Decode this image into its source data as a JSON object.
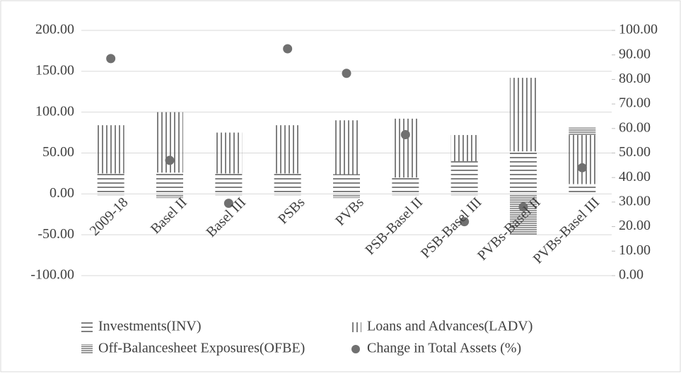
{
  "chart_data": {
    "type": "bar",
    "categories": [
      "2009-18",
      "Basel II",
      "Basel III",
      "PSBs",
      "PVBs",
      "PSB-Basel II",
      "PSB-Basel III",
      "PVBs-Basel II",
      "PVBs-Basel III"
    ],
    "series": [
      {
        "name": "Investments(INV)",
        "color": "#555555",
        "pattern": "horizontal",
        "values": [
          25,
          26,
          25,
          25,
          24,
          20,
          40,
          52,
          12
        ]
      },
      {
        "name": "Loans and Advances(LADV)",
        "color": "#555555",
        "pattern": "vertical",
        "values": [
          59,
          74,
          50,
          59,
          66,
          72,
          32,
          90,
          60
        ]
      },
      {
        "name": "Off-Balancesheet Exposures(OFBE)",
        "color": "#555555",
        "pattern": "dense-horizontal",
        "values": [
          -2,
          -5,
          -2,
          -2,
          -5,
          -2,
          -2,
          -50,
          9
        ]
      },
      {
        "name": "Change in Total Assets (%)",
        "color": "#707070",
        "type": "scatter",
        "axis": "y2",
        "values": [
          88.5,
          47,
          29.5,
          92.5,
          82.5,
          57.5,
          22,
          28,
          44
        ]
      }
    ],
    "ylim": [
      -100,
      200
    ],
    "yticks": [
      {
        "value": -100,
        "label": "-100.00"
      },
      {
        "value": -50,
        "label": "-50.00"
      },
      {
        "value": 0,
        "label": "0.00"
      },
      {
        "value": 50,
        "label": "50.00"
      },
      {
        "value": 100,
        "label": "100.00"
      },
      {
        "value": 150,
        "label": "150.00"
      },
      {
        "value": 200,
        "label": "200.00"
      }
    ],
    "y2lim": [
      0,
      100
    ],
    "y2ticks": [
      {
        "value": 0,
        "label": "0.00"
      },
      {
        "value": 10,
        "label": "10.00"
      },
      {
        "value": 20,
        "label": "20.00"
      },
      {
        "value": 30,
        "label": "30.00"
      },
      {
        "value": 40,
        "label": "40.00"
      },
      {
        "value": 50,
        "label": "50.00"
      },
      {
        "value": 60,
        "label": "60.00"
      },
      {
        "value": 70,
        "label": "70.00"
      },
      {
        "value": 80,
        "label": "80.00"
      },
      {
        "value": 90,
        "label": "90.00"
      },
      {
        "value": 100,
        "label": "100.00"
      }
    ],
    "grid": true,
    "legend": "bottom"
  }
}
